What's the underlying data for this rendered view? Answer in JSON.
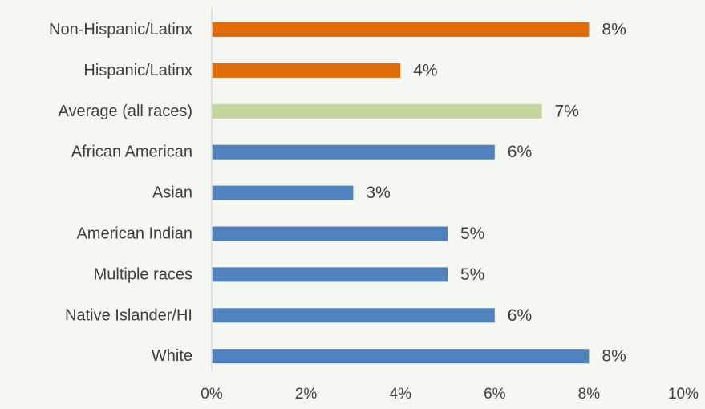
{
  "chart_data": {
    "type": "bar",
    "orientation": "horizontal",
    "categories": [
      "Non-Hispanic/Latinx",
      "Hispanic/Latinx",
      "Average (all races)",
      "African American",
      "Asian",
      "American Indian",
      "Multiple races",
      "Native Islander/HI",
      "White"
    ],
    "values": [
      8,
      4,
      7,
      6,
      3,
      5,
      5,
      6,
      8
    ],
    "data_labels": [
      "8%",
      "4%",
      "7%",
      "6%",
      "3%",
      "5%",
      "5%",
      "6%",
      "8%"
    ],
    "bar_colors": [
      "#e36c0a",
      "#e36c0a",
      "#c3d69b",
      "#4f81bd",
      "#4f81bd",
      "#4f81bd",
      "#4f81bd",
      "#4f81bd",
      "#4f81bd"
    ],
    "xlim": [
      0,
      10
    ],
    "x_ticks": [
      0,
      2,
      4,
      6,
      8,
      10
    ],
    "x_tick_labels": [
      "0%",
      "2%",
      "4%",
      "6%",
      "8%",
      "10%"
    ],
    "title": "",
    "xlabel": "",
    "ylabel": "",
    "grid": false,
    "legend": false
  },
  "colors": {
    "background": "#f5f7f2",
    "axis": "#d9d9d9",
    "text": "#404040"
  }
}
